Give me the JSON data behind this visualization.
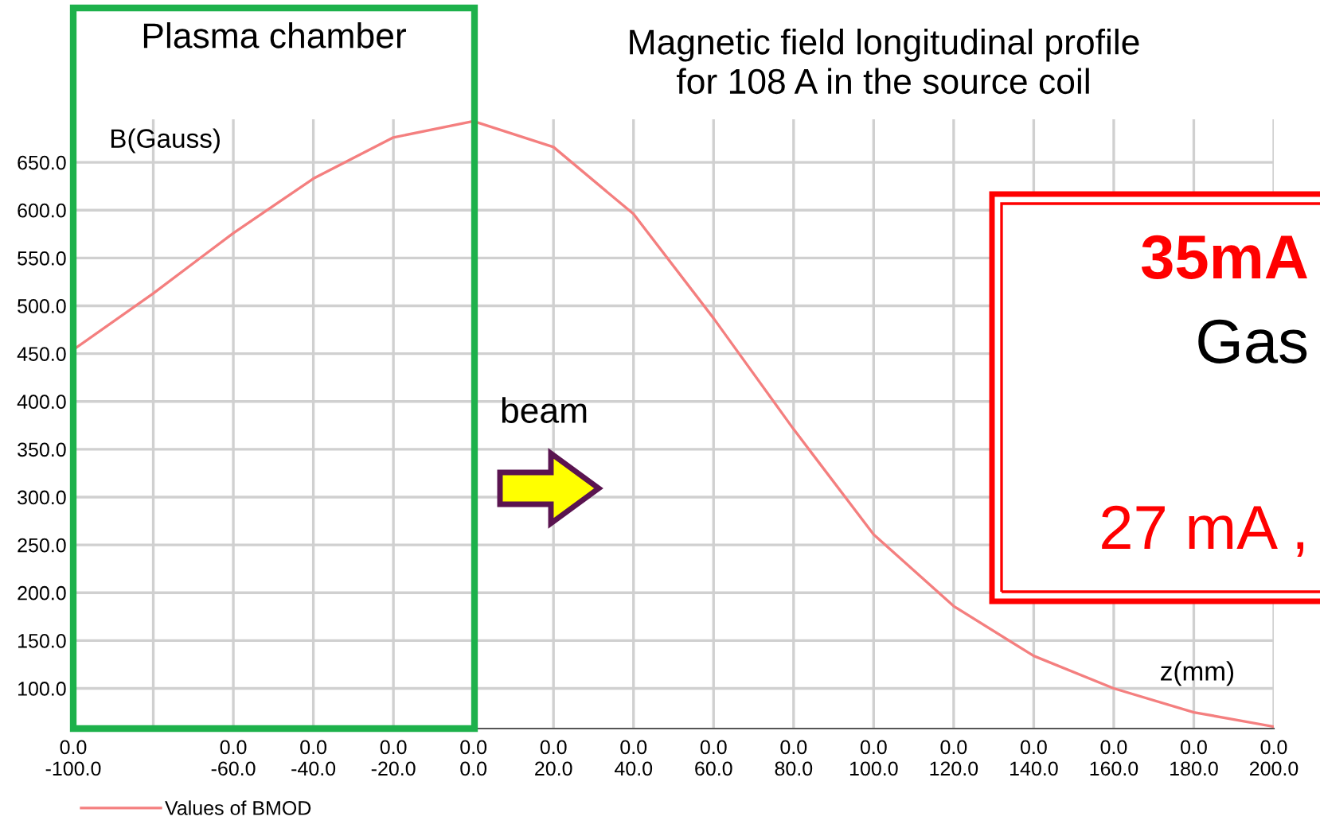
{
  "chart_data": {
    "type": "line",
    "title": "Magnetic field longitudinal profile\nfor 108 A in the source coil",
    "xlabel": "z(mm)",
    "ylabel": "B(Gauss)",
    "categories": [
      "0.0\n-100.0",
      null,
      "0.0\n-60.0",
      "0.0\n-40.0",
      "0.0\n-20.0",
      "0.0\n0.0",
      "0.0\n20.0",
      "0.0\n40.0",
      "0.0\n60.0",
      "0.0\n80.0",
      "0.0\n100.0",
      "0.0\n120.0",
      "0.0\n140.0",
      "0.0\n160.0",
      "0.0\n180.0",
      "0.0\n200.0"
    ],
    "series": [
      {
        "name": "Values of BMOD",
        "color": "#f47f7f",
        "values": [
          454,
          513,
          576,
          633,
          676,
          693,
          666,
          596,
          487,
          371,
          261,
          186,
          134,
          100,
          75,
          60
        ]
      }
    ],
    "ylim": [
      58,
      695
    ],
    "yticks": [
      {
        "value": 100,
        "label": "100.0"
      },
      {
        "value": 150,
        "label": "150.0"
      },
      {
        "value": 200,
        "label": "200.0"
      },
      {
        "value": 250,
        "label": "250.0"
      },
      {
        "value": 300,
        "label": "300.0"
      },
      {
        "value": 350,
        "label": "350.0"
      },
      {
        "value": 400,
        "label": "400.0"
      },
      {
        "value": 450,
        "label": "450.0"
      },
      {
        "value": 500,
        "label": "500.0"
      },
      {
        "value": 550,
        "label": "550.0"
      },
      {
        "value": 600,
        "label": "600.0"
      },
      {
        "value": 650,
        "label": "650.0"
      }
    ],
    "annotations": [
      "beam",
      "35mA",
      "Gas",
      "27 mA ,",
      "Plasma chamber"
    ],
    "grid": true,
    "legend": "bottom left",
    "marker": "none",
    "line_style": "solid"
  }
}
